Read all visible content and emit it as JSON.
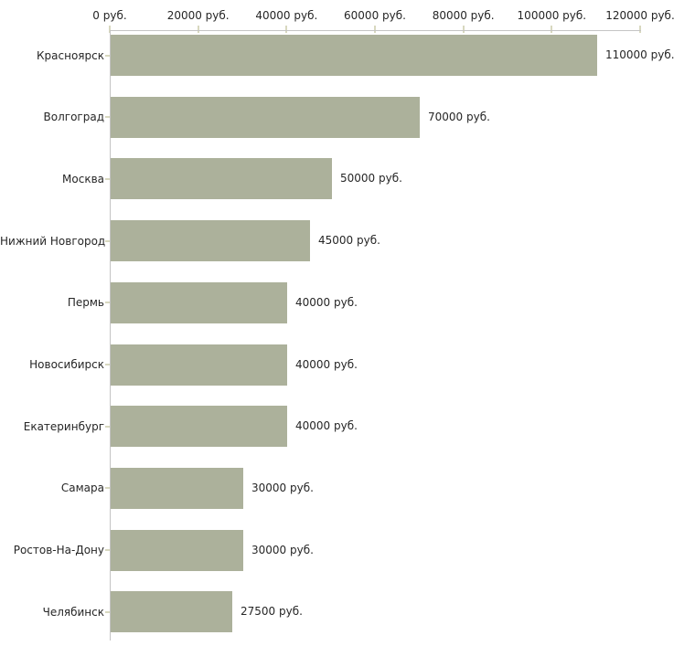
{
  "chart_data": {
    "type": "bar",
    "orientation": "horizontal",
    "title": "",
    "xlabel": "",
    "ylabel": "",
    "categories": [
      "Красноярск",
      "Волгоград",
      "Москва",
      "Нижний Новгород",
      "Пермь",
      "Новосибирск",
      "Екатеринбург",
      "Самара",
      "Ростов-На-Дону",
      "Челябинск"
    ],
    "values": [
      110000,
      70000,
      50000,
      45000,
      40000,
      40000,
      40000,
      30000,
      30000,
      27500
    ],
    "bar_value_labels": [
      "110000 руб.",
      "70000 руб.",
      "50000 руб.",
      "45000 руб.",
      "40000 руб.",
      "40000 руб.",
      "40000 руб.",
      "30000 руб.",
      "30000 руб.",
      "27500 руб."
    ],
    "x_tick_values": [
      0,
      20000,
      40000,
      60000,
      80000,
      100000,
      120000
    ],
    "x_tick_labels": [
      "0 руб.",
      "20000 руб.",
      "40000 руб.",
      "60000 руб.",
      "80000 руб.",
      "100000 руб.",
      "120000 руб."
    ],
    "xlim": [
      0,
      120000
    ],
    "grid": "off",
    "legend": "none",
    "x_axis_position": "top",
    "colors": {
      "bar": "#acb19b",
      "axis_line": "#c4c4c4",
      "tick_mark": "#d8d8bf",
      "text": "#262626",
      "background": "#ffffff"
    }
  }
}
